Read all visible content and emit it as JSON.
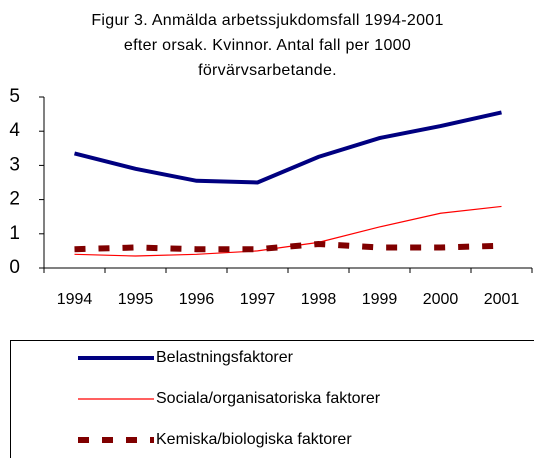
{
  "chart_data": {
    "type": "line",
    "title": "Figur 3. Anmälda arbetssjukdomsfall 1994-2001 efter orsak. Kvinnor. Antal fall per 1000 förvärvsarbetande.",
    "categories": [
      "1994",
      "1995",
      "1996",
      "1997",
      "1998",
      "1999",
      "2000",
      "2001"
    ],
    "series": [
      {
        "name": "Belastningsfaktorer",
        "color": "#000080",
        "style": "solid-thick",
        "values": [
          3.35,
          2.9,
          2.55,
          2.5,
          3.25,
          3.8,
          4.15,
          4.55
        ]
      },
      {
        "name": "Sociala/organisatoriska faktorer",
        "color": "#ff0000",
        "style": "solid-thin",
        "values": [
          0.4,
          0.35,
          0.4,
          0.5,
          0.75,
          1.2,
          1.6,
          1.8
        ]
      },
      {
        "name": "Kemiska/biologiska faktorer",
        "color": "#800000",
        "style": "dashed",
        "values": [
          0.55,
          0.6,
          0.55,
          0.55,
          0.7,
          0.6,
          0.6,
          0.65
        ]
      }
    ],
    "ylim": [
      0,
      5
    ],
    "yticks": [
      0,
      1,
      2,
      3,
      4,
      5
    ],
    "grid": false,
    "legend": "bottom"
  }
}
